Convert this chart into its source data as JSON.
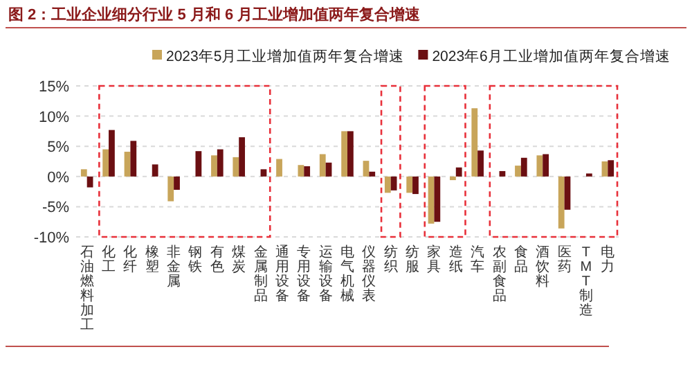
{
  "chart_data": {
    "type": "bar",
    "title": "图 2：工业企业细分行业 5 月和 6 月工业增加值两年复合增速",
    "categories": [
      "石油燃料加工",
      "化工",
      "化纤",
      "橡塑",
      "非金属",
      "钢铁",
      "有色",
      "煤炭",
      "金属制品",
      "通用设备",
      "专用设备",
      "运输设备",
      "电气机械",
      "仪器仪表",
      "纺织",
      "纺服",
      "家具",
      "造纸",
      "汽车",
      "农副食品",
      "食品",
      "酒饮料",
      "医药",
      "TMT制造",
      "电力"
    ],
    "series": [
      {
        "name": "2023年5月工业增加值两年复合增速",
        "color": "#c8a55a",
        "values": [
          1.2,
          4.5,
          4.1,
          null,
          -4.1,
          null,
          3.5,
          3.2,
          null,
          2.9,
          1.9,
          3.7,
          7.5,
          2.6,
          -2.7,
          -2.7,
          -7.8,
          -0.6,
          11.3,
          null,
          1.8,
          3.5,
          -8.6,
          null,
          2.5
        ]
      },
      {
        "name": "2023年6月工业增加值两年复合增速",
        "color": "#6b0f12",
        "values": [
          -1.8,
          7.7,
          5.9,
          2.0,
          -2.2,
          4.2,
          4.5,
          6.5,
          1.2,
          null,
          1.7,
          2.3,
          7.5,
          0.8,
          -2.3,
          -2.9,
          -7.5,
          1.5,
          4.3,
          0.9,
          3.1,
          3.7,
          -5.5,
          0.5,
          2.7
        ]
      }
    ],
    "ylim": [
      -10,
      15
    ],
    "yticks": [
      {
        "value": -10,
        "label": "-10%"
      },
      {
        "value": -5,
        "label": "-5%"
      },
      {
        "value": 0,
        "label": "0%"
      },
      {
        "value": 5,
        "label": "5%"
      },
      {
        "value": 10,
        "label": "10%"
      },
      {
        "value": 15,
        "label": "15%"
      }
    ],
    "grid": "y",
    "legend": "top"
  }
}
